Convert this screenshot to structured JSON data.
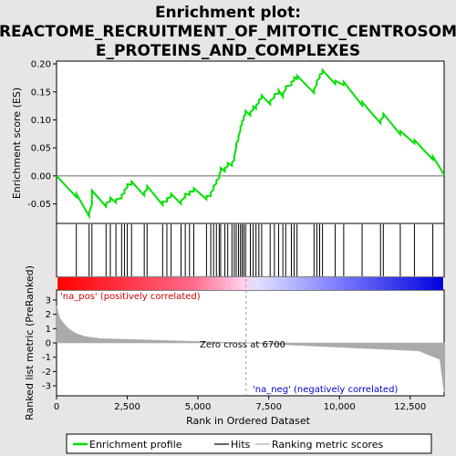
{
  "title": {
    "line1": "Enrichment plot:",
    "line2": "REACTOME_RECRUITMENT_OF_MITOTIC_CENTROSOM",
    "line3": "E_PROTEINS_AND_COMPLEXES"
  },
  "colors": {
    "profile": "#00e000",
    "hits": "#000000",
    "metric": "#aaaaaa",
    "pos_label": "#cc0000",
    "neg_label": "#0000cc",
    "zero_cross_line": "#999999"
  },
  "chart_data": {
    "type": "line",
    "x_range": [
      0,
      13700
    ],
    "x_ticks": [
      0,
      2500,
      5000,
      7500,
      10000,
      12500
    ],
    "x_tick_labels": [
      "0",
      "2,500",
      "5,000",
      "7,500",
      "10,000",
      "12,500"
    ],
    "xlabel": "Rank in Ordered Dataset",
    "es_panel": {
      "ylabel": "Enrichment score (ES)",
      "ylim": [
        -0.085,
        0.205
      ],
      "y_ticks": [
        -0.05,
        0.0,
        0.05,
        0.1,
        0.15,
        0.2
      ],
      "y_tick_labels": [
        "-0.05",
        "0.00",
        "0.05",
        "0.10",
        "0.15",
        "0.20"
      ],
      "grid": false
    },
    "metric_panel": {
      "ylabel": "Ranked list metric (PreRanked)",
      "ylim": [
        -3.7,
        3.7
      ],
      "y_ticks": [
        -3,
        -2,
        -1,
        0,
        1,
        2,
        3
      ],
      "y_tick_labels": [
        "-3",
        "-2",
        "-1",
        "0",
        "1",
        "2",
        "3"
      ]
    },
    "hit_positions": [
      700,
      1150,
      1250,
      1750,
      1900,
      2100,
      2300,
      2400,
      2500,
      2650,
      3100,
      3200,
      3750,
      3900,
      4050,
      4400,
      4550,
      4700,
      4850,
      5300,
      5450,
      5550,
      5650,
      5750,
      5800,
      5950,
      6050,
      6200,
      6280,
      6350,
      6430,
      6500,
      6560,
      6620,
      6680,
      6850,
      6950,
      7050,
      7150,
      7250,
      7550,
      7700,
      7850,
      8000,
      8100,
      8300,
      8400,
      8500,
      9100,
      9200,
      9300,
      9400,
      9850,
      10150,
      10800,
      11450,
      11550,
      12150,
      12650,
      13300
    ],
    "series": [
      {
        "values": [
          [
            0,
            0.0
          ],
          [
            700,
            -0.038
          ],
          [
            701,
            -0.032
          ],
          [
            1150,
            -0.072
          ],
          [
            1151,
            -0.066
          ],
          [
            1250,
            -0.052
          ],
          [
            1251,
            -0.026
          ],
          [
            1750,
            -0.055
          ],
          [
            1751,
            -0.049
          ],
          [
            1900,
            -0.045
          ],
          [
            1901,
            -0.039
          ],
          [
            2100,
            -0.048
          ],
          [
            2101,
            -0.042
          ],
          [
            2300,
            -0.04
          ],
          [
            2301,
            -0.034
          ],
          [
            2400,
            -0.031
          ],
          [
            2401,
            -0.025
          ],
          [
            2500,
            -0.021
          ],
          [
            2501,
            -0.015
          ],
          [
            2650,
            -0.016
          ],
          [
            2651,
            -0.01
          ],
          [
            3100,
            -0.035
          ],
          [
            3101,
            -0.029
          ],
          [
            3200,
            -0.024
          ],
          [
            3201,
            -0.018
          ],
          [
            3750,
            -0.052
          ],
          [
            3751,
            -0.046
          ],
          [
            3900,
            -0.046
          ],
          [
            3901,
            -0.04
          ],
          [
            4050,
            -0.038
          ],
          [
            4051,
            -0.032
          ],
          [
            4400,
            -0.05
          ],
          [
            4401,
            -0.044
          ],
          [
            4550,
            -0.038
          ],
          [
            4551,
            -0.032
          ],
          [
            4700,
            -0.034
          ],
          [
            4701,
            -0.028
          ],
          [
            4850,
            -0.028
          ],
          [
            4851,
            -0.022
          ],
          [
            5300,
            -0.042
          ],
          [
            5301,
            -0.036
          ],
          [
            5450,
            -0.036
          ],
          [
            5451,
            -0.03
          ],
          [
            5550,
            -0.024
          ],
          [
            5551,
            -0.018
          ],
          [
            5650,
            -0.014
          ],
          [
            5651,
            -0.008
          ],
          [
            5750,
            -0.004
          ],
          [
            5751,
            0.002
          ],
          [
            5800,
            0.008
          ],
          [
            5801,
            0.014
          ],
          [
            5950,
            0.008
          ],
          [
            5951,
            0.014
          ],
          [
            6050,
            0.017
          ],
          [
            6051,
            0.023
          ],
          [
            6200,
            0.018
          ],
          [
            6201,
            0.024
          ],
          [
            6280,
            0.028
          ],
          [
            6281,
            0.034
          ],
          [
            6350,
            0.052
          ],
          [
            6351,
            0.058
          ],
          [
            6430,
            0.064
          ],
          [
            6431,
            0.07
          ],
          [
            6500,
            0.082
          ],
          [
            6501,
            0.088
          ],
          [
            6560,
            0.092
          ],
          [
            6561,
            0.098
          ],
          [
            6620,
            0.1
          ],
          [
            6621,
            0.106
          ],
          [
            6680,
            0.11
          ],
          [
            6681,
            0.116
          ],
          [
            6850,
            0.108
          ],
          [
            6851,
            0.114
          ],
          [
            6950,
            0.118
          ],
          [
            6951,
            0.124
          ],
          [
            7050,
            0.12
          ],
          [
            7051,
            0.126
          ],
          [
            7150,
            0.13
          ],
          [
            7151,
            0.136
          ],
          [
            7250,
            0.138
          ],
          [
            7251,
            0.144
          ],
          [
            7550,
            0.128
          ],
          [
            7551,
            0.134
          ],
          [
            7700,
            0.14
          ],
          [
            7701,
            0.146
          ],
          [
            7850,
            0.147
          ],
          [
            7851,
            0.153
          ],
          [
            8000,
            0.141
          ],
          [
            8001,
            0.147
          ],
          [
            8100,
            0.154
          ],
          [
            8101,
            0.16
          ],
          [
            8300,
            0.162
          ],
          [
            8301,
            0.168
          ],
          [
            8400,
            0.17
          ],
          [
            8401,
            0.176
          ],
          [
            8500,
            0.173
          ],
          [
            8501,
            0.179
          ],
          [
            9100,
            0.148
          ],
          [
            9101,
            0.154
          ],
          [
            9200,
            0.164
          ],
          [
            9201,
            0.17
          ],
          [
            9300,
            0.175
          ],
          [
            9301,
            0.181
          ],
          [
            9400,
            0.183
          ],
          [
            9401,
            0.189
          ],
          [
            9850,
            0.164
          ],
          [
            9851,
            0.17
          ],
          [
            10150,
            0.162
          ],
          [
            10151,
            0.168
          ],
          [
            10800,
            0.126
          ],
          [
            10801,
            0.132
          ],
          [
            11450,
            0.094
          ],
          [
            11451,
            0.1
          ],
          [
            11550,
            0.105
          ],
          [
            11551,
            0.111
          ],
          [
            12150,
            0.074
          ],
          [
            12151,
            0.08
          ],
          [
            12650,
            0.058
          ],
          [
            12651,
            0.064
          ],
          [
            13300,
            0.029
          ],
          [
            13301,
            0.035
          ],
          [
            13700,
            0.002
          ]
        ]
      }
    ],
    "annotations": {
      "pos_label": "'na_pos' (positively correlated)",
      "neg_label": "'na_neg' (negatively correlated)",
      "zero_cross": "Zero cross at 6700",
      "zero_cross_x": 6700
    },
    "legend": {
      "placement": "bottom",
      "items": [
        "Enrichment profile",
        "Hits",
        "Ranking metric scores"
      ]
    }
  }
}
